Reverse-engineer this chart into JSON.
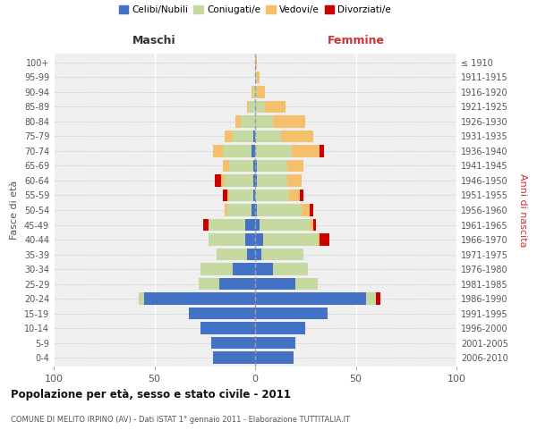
{
  "age_groups": [
    "0-4",
    "5-9",
    "10-14",
    "15-19",
    "20-24",
    "25-29",
    "30-34",
    "35-39",
    "40-44",
    "45-49",
    "50-54",
    "55-59",
    "60-64",
    "65-69",
    "70-74",
    "75-79",
    "80-84",
    "85-89",
    "90-94",
    "95-99",
    "100+"
  ],
  "birth_years": [
    "2006-2010",
    "2001-2005",
    "1996-2000",
    "1991-1995",
    "1986-1990",
    "1981-1985",
    "1976-1980",
    "1971-1975",
    "1966-1970",
    "1961-1965",
    "1956-1960",
    "1951-1955",
    "1946-1950",
    "1941-1945",
    "1936-1940",
    "1931-1935",
    "1926-1930",
    "1921-1925",
    "1916-1920",
    "1911-1915",
    "≤ 1910"
  ],
  "maschi_celibe": [
    21,
    22,
    27,
    33,
    55,
    18,
    11,
    4,
    5,
    5,
    2,
    1,
    1,
    1,
    2,
    1,
    0,
    0,
    0,
    0,
    0
  ],
  "maschi_coniugato": [
    0,
    0,
    0,
    0,
    3,
    10,
    16,
    15,
    18,
    18,
    12,
    12,
    14,
    12,
    14,
    10,
    7,
    3,
    1,
    0,
    0
  ],
  "maschi_vedovo": [
    0,
    0,
    0,
    0,
    0,
    0,
    0,
    0,
    0,
    0,
    1,
    1,
    2,
    3,
    5,
    4,
    3,
    1,
    1,
    0,
    0
  ],
  "maschi_divorziato": [
    0,
    0,
    0,
    0,
    0,
    0,
    0,
    0,
    0,
    3,
    0,
    2,
    3,
    0,
    0,
    0,
    0,
    0,
    0,
    0,
    0
  ],
  "femmine_celibe": [
    19,
    20,
    25,
    36,
    55,
    20,
    9,
    3,
    4,
    2,
    1,
    0,
    1,
    1,
    0,
    0,
    0,
    0,
    0,
    0,
    0
  ],
  "femmine_coniugato": [
    0,
    0,
    0,
    0,
    5,
    11,
    17,
    21,
    27,
    25,
    22,
    17,
    15,
    15,
    18,
    13,
    9,
    5,
    1,
    1,
    0
  ],
  "femmine_vedovo": [
    0,
    0,
    0,
    0,
    0,
    0,
    0,
    0,
    1,
    2,
    4,
    5,
    7,
    8,
    14,
    16,
    16,
    10,
    4,
    1,
    1
  ],
  "femmine_divorziato": [
    0,
    0,
    0,
    0,
    2,
    0,
    0,
    0,
    5,
    1,
    2,
    2,
    0,
    0,
    2,
    0,
    0,
    0,
    0,
    0,
    0
  ],
  "colors": {
    "celibe": "#4472C4",
    "coniugato": "#c5d9a0",
    "vedovo": "#f4c06b",
    "divorziato": "#cc0000"
  },
  "title": "Popolazione per età, sesso e stato civile - 2011",
  "subtitle": "COMUNE DI MELITO IRPINO (AV) - Dati ISTAT 1° gennaio 2011 - Elaborazione TUTTITALIA.IT",
  "ylabel_left": "Fasce di età",
  "ylabel_right": "Anni di nascita",
  "xlabel_maschi": "Maschi",
  "xlabel_femmine": "Femmine",
  "xlim": 100,
  "bg_color": "#ffffff",
  "plot_bg": "#efefef"
}
